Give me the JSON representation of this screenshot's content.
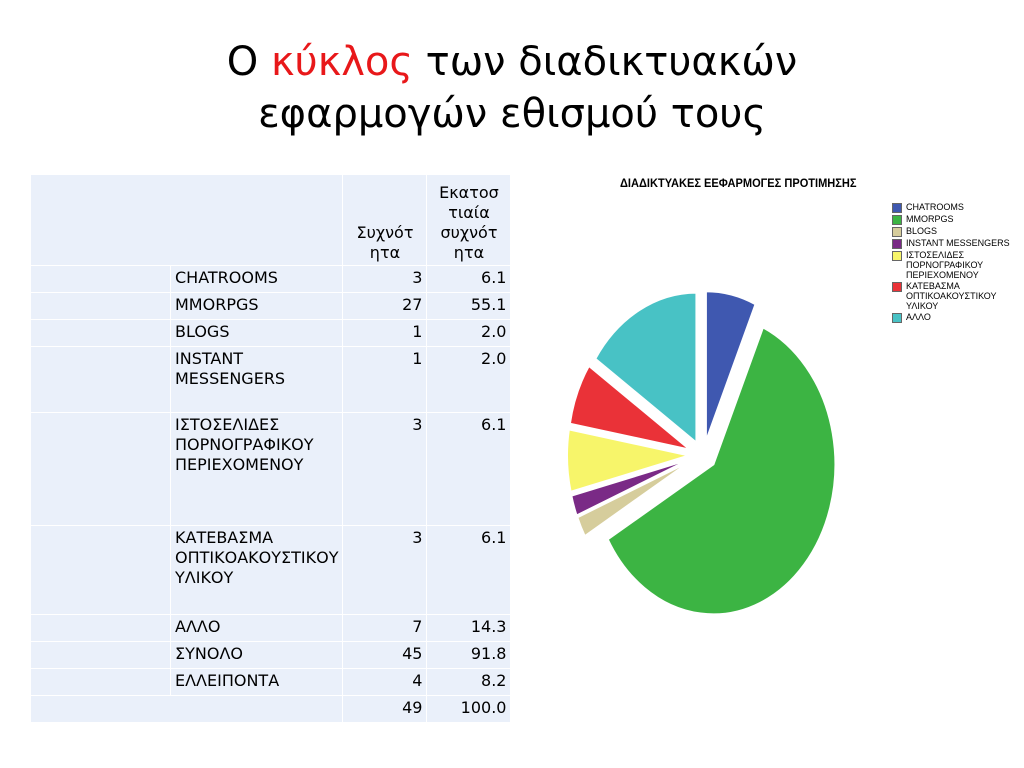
{
  "title": {
    "prefix": "Ο ",
    "highlight": "κύκλος",
    "rest": " των διαδικτυακών",
    "line2": "εφαρμογών εθισμού τους"
  },
  "table": {
    "headers": {
      "freq": "Συχνότ ητα",
      "pct": "Εκατοσ τιαία συχνότ ητα"
    },
    "rows": [
      {
        "label": "CHATROOMS",
        "freq": "3",
        "pct": "6.1"
      },
      {
        "label": "MMORPGS",
        "freq": "27",
        "pct": "55.1"
      },
      {
        "label": "BLOGS",
        "freq": "1",
        "pct": "2.0"
      },
      {
        "label": "INSTANT MESSENGERS",
        "freq": "1",
        "pct": "2.0"
      },
      {
        "label": "ΙΣΤΟΣΕΛΙΔΕΣ ΠΟΡΝΟΓΡΑΦΙΚΟΥ ΠΕΡΙΕΧΟΜΕΝΟΥ",
        "freq": "3",
        "pct": "6.1"
      },
      {
        "label": "ΚΑΤΕΒΑΣΜΑ ΟΠΤΙΚΟΑΚΟΥΣΤΙΚΟΥ ΥΛΙΚΟΥ",
        "freq": "3",
        "pct": "6.1"
      },
      {
        "label": "ΑΛΛΟ",
        "freq": "7",
        "pct": "14.3"
      },
      {
        "label": "ΣΥΝΟΛΟ",
        "freq": "45",
        "pct": "91.8"
      },
      {
        "label": "ΕΛΛΕΙΠΟΝΤΑ",
        "freq": "4",
        "pct": "8.2"
      }
    ],
    "total": {
      "freq": "49",
      "pct": "100.0"
    }
  },
  "chart_data": {
    "type": "pie",
    "title": "ΔΙΑΔΙΚΤΥΑΚΕΣ ΕΕΦΑΡΜΟΓΕΣ ΠΡΟΤΙΜΗΣΗΣ",
    "categories": [
      "CHATROOMS",
      "MMORPGS",
      "BLOGS",
      "INSTANT MESSENGERS",
      "ΙΣΤΟΣΕΛΙΔΕΣ ΠΟΡΝΟΓΡΑΦΙΚΟΥ ΠΕΡΙΕΧΟΜΕΝΟΥ",
      "ΚΑΤΕΒΑΣΜΑ ΟΠΤΙΚΟΑΚΟΥΣΤΙΚΟΥ ΥΛΙΚΟΥ",
      "ΑΛΛΟ"
    ],
    "values": [
      3,
      27,
      1,
      1,
      3,
      3,
      7
    ],
    "colors": [
      "#3f58b0",
      "#3cb443",
      "#d6cd9c",
      "#7a2a86",
      "#f7f56a",
      "#ea3238",
      "#48c2c5"
    ],
    "exploded": true,
    "legend_position": "top-right",
    "legend_labels": [
      "CHATROOMS",
      "MMORPGS",
      "BLOGS",
      "INSTANT MESSENGERS",
      "ΙΣΤΟΣΕΛΙΔΕΣ\nΠΟΡΝΟΓΡΑΦΙΚΟΥ\nΠΕΡΙΕΧΟΜΕΝΟΥ",
      "ΚΑΤΕΒΑΣΜΑ\nΟΠΤΙΚΟΑΚΟΥΣΤΙΚΟΥ\nΥΛΙΚΟΥ",
      "ΑΛΛΟ"
    ]
  }
}
